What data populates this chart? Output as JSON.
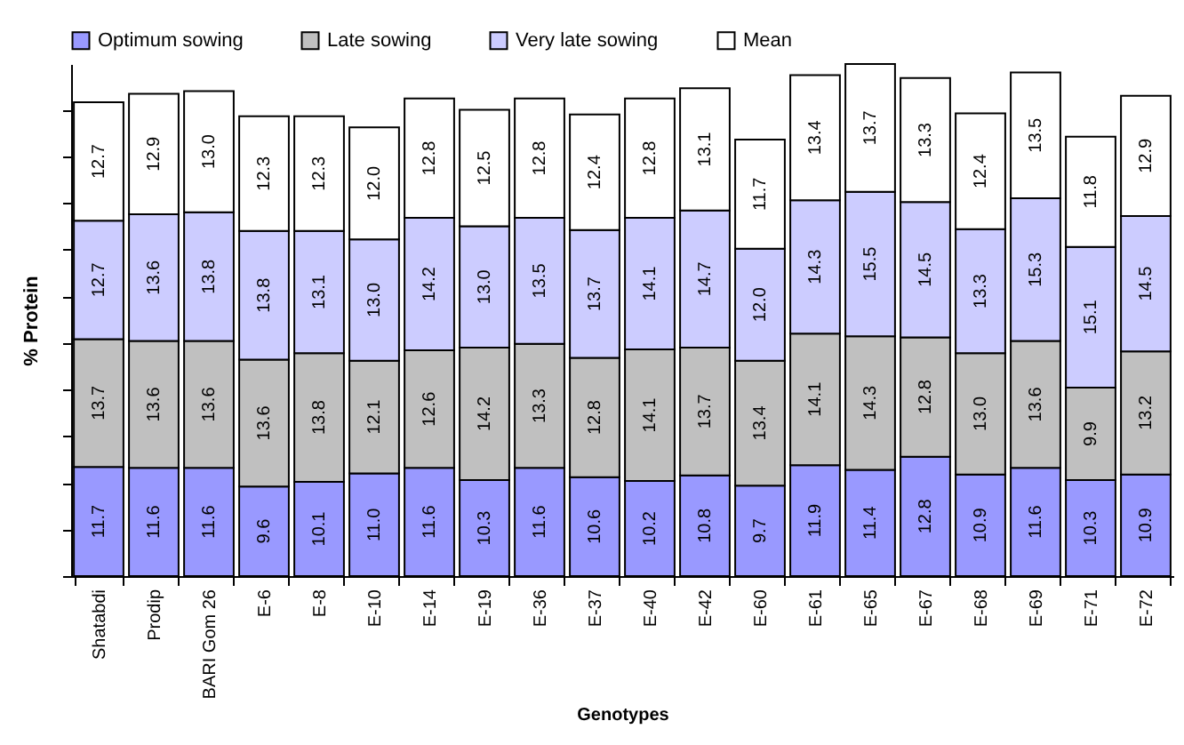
{
  "chart_data": {
    "type": "bar",
    "stacked": true,
    "xlabel": "Genotypes",
    "ylabel": "% Protein",
    "legend": "top",
    "grid": false,
    "tick_labels": "x",
    "categories": [
      "Shatabdi",
      "Prodip",
      "BARI Gom 26",
      "E-6",
      "E-8",
      "E-10",
      "E-14",
      "E-19",
      "E-36",
      "E-37",
      "E-40",
      "E-42",
      "E-60",
      "E-61",
      "E-65",
      "E-67",
      "E-68",
      "E-69",
      "E-71",
      "E-72"
    ],
    "series": [
      {
        "name": "Optimum sowing",
        "color": "#9999ff",
        "values": [
          11.7,
          11.6,
          11.6,
          9.6,
          10.1,
          11.0,
          11.6,
          10.3,
          11.6,
          10.6,
          10.2,
          10.8,
          9.7,
          11.9,
          11.4,
          12.8,
          10.9,
          11.6,
          10.3,
          10.9
        ],
        "value_labels": [
          "11.7",
          "11.6",
          "11.6",
          "9.6",
          "10.1",
          "11.0",
          "11.6",
          "10.3",
          "11.6",
          "10.6",
          "10.2",
          "10.8",
          "9.7",
          "11.9",
          "11.4",
          "12.8",
          "10.9",
          "11.6",
          "10.3",
          "10.9"
        ]
      },
      {
        "name": "Late sowing",
        "color": "#c0c0c0",
        "values": [
          13.7,
          13.6,
          13.6,
          13.6,
          13.8,
          12.1,
          12.6,
          14.2,
          13.3,
          12.8,
          14.1,
          13.7,
          13.4,
          14.1,
          14.3,
          12.8,
          13.0,
          13.6,
          9.9,
          13.2
        ],
        "value_labels": [
          "13.7",
          "13.6",
          "13.6",
          "13.6",
          "13.8",
          "12.1",
          "12.6",
          "14.2",
          "13.3",
          "12.8",
          "14.1",
          "13.7",
          "13.4",
          "14.1",
          "14.3",
          "12.8",
          "13.0",
          "13.6",
          "9.9",
          "13.2"
        ]
      },
      {
        "name": "Very late sowing",
        "color": "#ccccff",
        "values": [
          12.7,
          13.6,
          13.8,
          13.8,
          13.1,
          13.0,
          14.2,
          13.0,
          13.5,
          13.7,
          14.1,
          14.7,
          12.0,
          14.3,
          15.5,
          14.5,
          13.3,
          15.3,
          15.1,
          14.5
        ],
        "value_labels": [
          "12.7",
          "13.6",
          "13.8",
          "13.8",
          "13.1",
          "13.0",
          "14.2",
          "13.0",
          "13.5",
          "13.7",
          "14.1",
          "14.7",
          "12.0",
          "14.3",
          "15.5",
          "14.5",
          "13.3",
          "15.3",
          "15.1",
          "14.5"
        ]
      },
      {
        "name": "Mean",
        "color": "#ffffff",
        "values": [
          12.7,
          12.9,
          13.0,
          12.3,
          12.3,
          12.0,
          12.8,
          12.5,
          12.8,
          12.4,
          12.8,
          13.1,
          11.7,
          13.4,
          13.7,
          13.3,
          12.4,
          13.5,
          11.8,
          12.9
        ],
        "value_labels": [
          "12.7",
          "12.9",
          "13.0",
          "12.3",
          "12.3",
          "12.0",
          "12.8",
          "12.5",
          "12.8",
          "12.4",
          "12.8",
          "13.1",
          "11.7",
          "13.4",
          "13.7",
          "13.3",
          "12.4",
          "13.5",
          "11.8",
          "12.9"
        ]
      }
    ]
  }
}
